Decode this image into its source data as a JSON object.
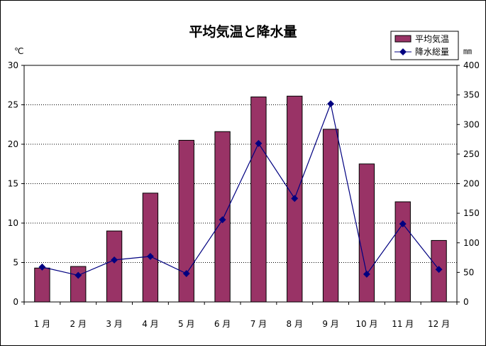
{
  "chart_data": {
    "type": "bar",
    "title": "平均気温と降水量",
    "categories": [
      "1 月",
      "2 月",
      "3 月",
      "4 月",
      "5 月",
      "6 月",
      "7 月",
      "8 月",
      "9 月",
      "10 月",
      "11 月",
      "12 月"
    ],
    "series": [
      {
        "name": "平均気温",
        "type": "bar",
        "axis": "left",
        "color": "#993366",
        "values": [
          4.3,
          4.5,
          9.0,
          13.8,
          20.5,
          21.6,
          26.0,
          26.1,
          21.9,
          17.5,
          12.7,
          7.8
        ]
      },
      {
        "name": "降水総量",
        "type": "line",
        "axis": "right",
        "color": "#000080",
        "values": [
          59,
          45,
          71,
          77,
          48,
          139,
          268,
          175,
          335,
          47,
          132,
          55
        ]
      }
    ],
    "y_left": {
      "unit": "℃",
      "lim": [
        0,
        30
      ],
      "ticks": [
        0,
        5,
        10,
        15,
        20,
        25,
        30
      ]
    },
    "y_right": {
      "unit": "㎜",
      "lim": [
        0,
        400
      ],
      "ticks": [
        0,
        50,
        100,
        150,
        200,
        250,
        300,
        350,
        400
      ]
    },
    "grid": true,
    "legend_position": "top-right"
  }
}
